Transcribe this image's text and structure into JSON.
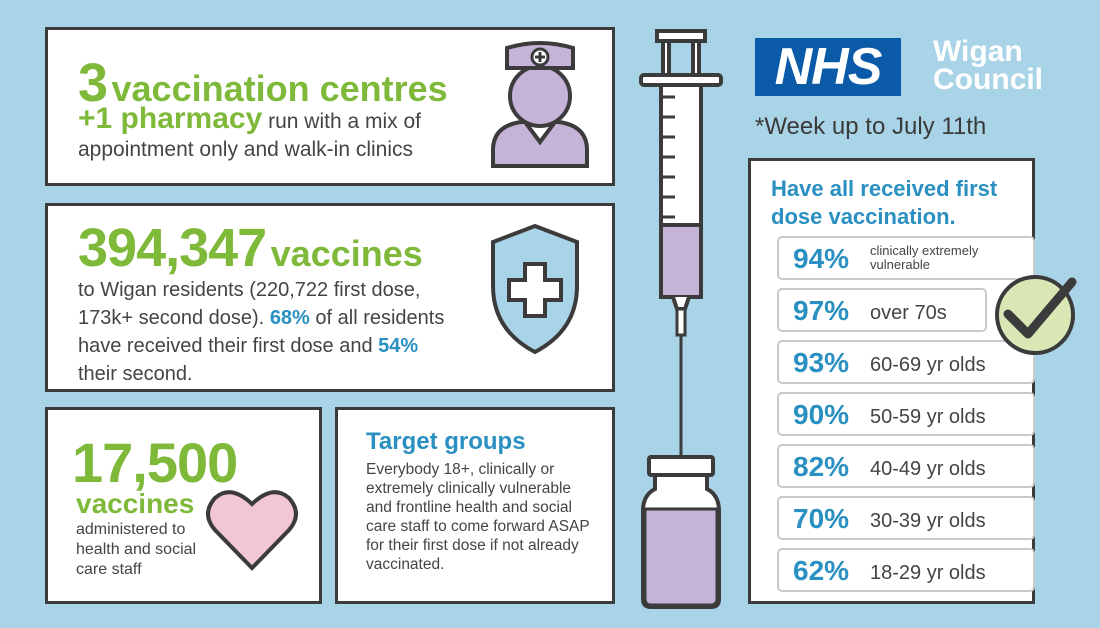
{
  "centres": {
    "count": "3",
    "label": "vaccination centres",
    "pharmacy": "+1 pharmacy",
    "line2_rest": " run with a mix of",
    "line3": "appointment only and walk-in clinics"
  },
  "vaccines": {
    "total": "394,347",
    "label": "vaccines",
    "body_part1": "to Wigan residents (220,722 first dose, 173k+ second dose).",
    "pct1": "68%",
    "body_part2": "of all residents have received their first dose and",
    "pct2": "54%",
    "body_part3": "their second."
  },
  "staff": {
    "count": "17,500",
    "label": "vaccines",
    "desc": "administered to health and social care staff"
  },
  "target": {
    "title": "Target groups",
    "desc": "Everybody 18+, clinically or extremely clinically vulnerable and frontline health and social care staff to come forward ASAP for their first dose if not already vaccinated."
  },
  "logos": {
    "nhs": "NHS",
    "wigan_line1": "Wigan",
    "wigan_line2": "Council"
  },
  "week_note": "*Week up to July 11th",
  "first_dose": {
    "title": "Have all received first dose vaccination.",
    "rows": [
      {
        "pct": "94%",
        "group": "clinically extremely vulnerable"
      },
      {
        "pct": "97%",
        "group": "over 70s"
      },
      {
        "pct": "93%",
        "group": "60-69 yr olds"
      },
      {
        "pct": "90%",
        "group": "50-59 yr olds"
      },
      {
        "pct": "82%",
        "group": "40-49 yr olds"
      },
      {
        "pct": "70%",
        "group": "30-39 yr olds"
      },
      {
        "pct": "62%",
        "group": "18-29 yr olds"
      }
    ]
  },
  "colors": {
    "background": "#a9d3e6",
    "green": "#7fb93a",
    "blue": "#2a8fc1",
    "nhs_blue": "#0a5aa8",
    "purple": "#c5b3d8"
  }
}
